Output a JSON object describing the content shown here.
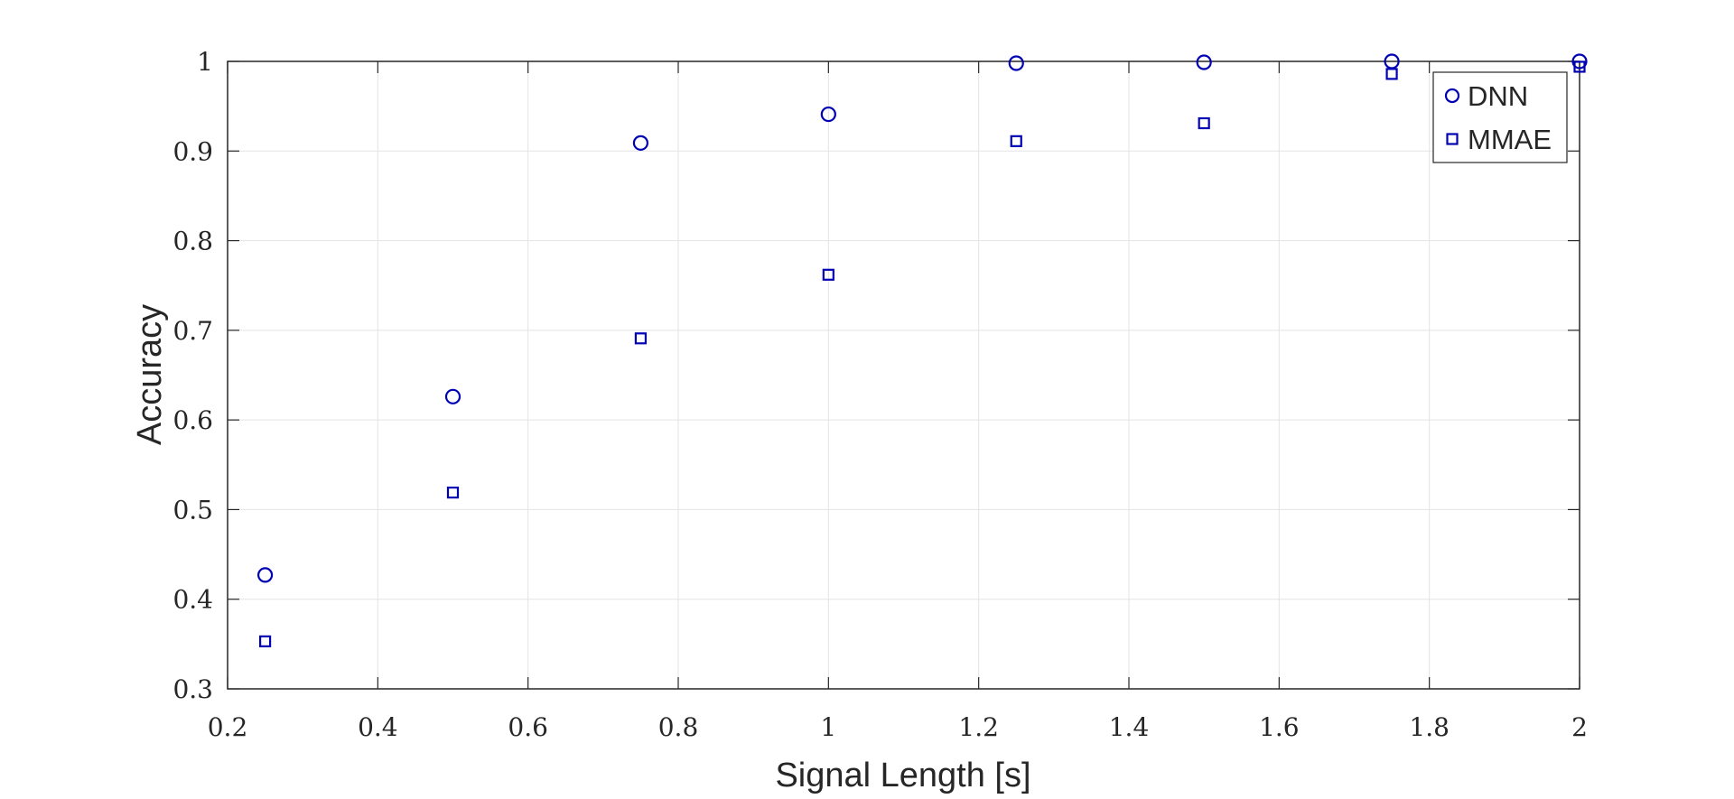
{
  "chart_data": {
    "type": "scatter",
    "title": "",
    "xlabel": "Signal Length [s]",
    "ylabel": "Accuracy",
    "xlim": [
      0.2,
      2
    ],
    "ylim": [
      0.3,
      1
    ],
    "x_ticks": [
      "0.2",
      "0.4",
      "0.6",
      "0.8",
      "1",
      "1.2",
      "1.4",
      "1.6",
      "1.8",
      "2"
    ],
    "y_ticks": [
      "0.3",
      "0.4",
      "0.5",
      "0.6",
      "0.7",
      "0.8",
      "0.9",
      "1"
    ],
    "grid": true,
    "legend_position": "top-right",
    "series": [
      {
        "name": "DNN",
        "marker": "circle",
        "color": "#0000b4",
        "x": [
          0.25,
          0.5,
          0.75,
          1.0,
          1.25,
          1.5,
          1.75,
          2.0
        ],
        "y": [
          0.427,
          0.626,
          0.909,
          0.941,
          0.998,
          0.999,
          1.0,
          1.0
        ]
      },
      {
        "name": "MMAE",
        "marker": "square",
        "color": "#0000b4",
        "x": [
          0.25,
          0.5,
          0.75,
          1.0,
          1.25,
          1.5,
          1.75,
          2.0
        ],
        "y": [
          0.353,
          0.519,
          0.691,
          0.762,
          0.911,
          0.931,
          0.986,
          0.994
        ]
      }
    ]
  }
}
